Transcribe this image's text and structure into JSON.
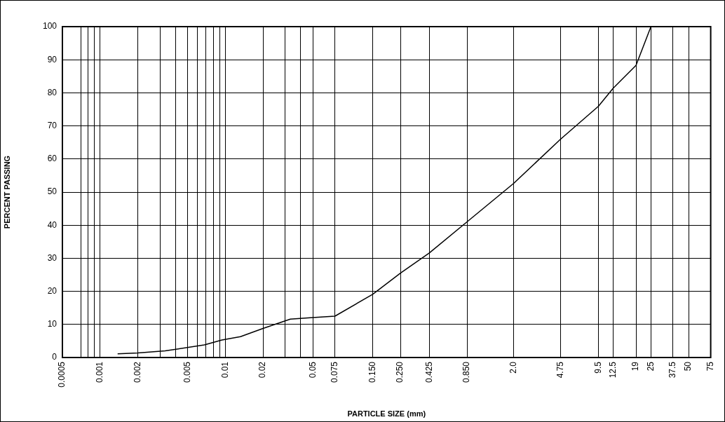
{
  "chart_data": {
    "type": "line",
    "xlabel": "PARTICLE SIZE (mm)",
    "ylabel": "PERCENT PASSING",
    "log": "x",
    "grid": true,
    "legend": false,
    "marker": "none",
    "x": [
      0.00138,
      0.002,
      0.0033,
      0.0068,
      0.0094,
      0.0132,
      0.02,
      0.033,
      0.05,
      0.075,
      0.15,
      0.25,
      0.425,
      0.85,
      2.0,
      4.75,
      9.5,
      12.5,
      19,
      25
    ],
    "series": [
      {
        "color": "#000000",
        "values": [
          1.1,
          1.4,
          2.0,
          3.8,
          5.3,
          6.3,
          8.8,
          11.6,
          12.1,
          12.5,
          19.1,
          25.5,
          31.6,
          41.0,
          52.6,
          66.0,
          75.9,
          81.4,
          88.3,
          100
        ]
      }
    ],
    "xlim": [
      0.0005,
      75
    ],
    "xticks": [
      {
        "value": 0.0005,
        "label": "0.0005"
      },
      {
        "value": 0.0007,
        "label": null
      },
      {
        "value": 0.0008,
        "label": null
      },
      {
        "value": 0.0009,
        "label": null
      },
      {
        "value": 0.001,
        "label": "0.001"
      },
      {
        "value": 0.002,
        "label": "0.002"
      },
      {
        "value": 0.003,
        "label": null
      },
      {
        "value": 0.004,
        "label": null
      },
      {
        "value": 0.005,
        "label": "0.005"
      },
      {
        "value": 0.006,
        "label": null
      },
      {
        "value": 0.007,
        "label": null
      },
      {
        "value": 0.008,
        "label": null
      },
      {
        "value": 0.009,
        "label": null
      },
      {
        "value": 0.01,
        "label": "0.01"
      },
      {
        "value": 0.02,
        "label": "0.02"
      },
      {
        "value": 0.03,
        "label": null
      },
      {
        "value": 0.04,
        "label": null
      },
      {
        "value": 0.05,
        "label": "0.05"
      },
      {
        "value": 0.075,
        "label": "0.075"
      },
      {
        "value": 0.15,
        "label": "0.150"
      },
      {
        "value": 0.25,
        "label": "0.250"
      },
      {
        "value": 0.425,
        "label": "0.425"
      },
      {
        "value": 0.85,
        "label": "0.850"
      },
      {
        "value": 2,
        "label": "2.0"
      },
      {
        "value": 4.75,
        "label": "4.75"
      },
      {
        "value": 9.5,
        "label": "9.5"
      },
      {
        "value": 12.5,
        "label": "12.5"
      },
      {
        "value": 19,
        "label": "19"
      },
      {
        "value": 25,
        "label": "25"
      },
      {
        "value": 37.5,
        "label": "37.5"
      },
      {
        "value": 50,
        "label": "50"
      },
      {
        "value": 75,
        "label": "75"
      }
    ],
    "ylim": [
      0,
      100
    ],
    "yticks": [
      0,
      10,
      20,
      30,
      40,
      50,
      60,
      70,
      80,
      90,
      100
    ]
  }
}
